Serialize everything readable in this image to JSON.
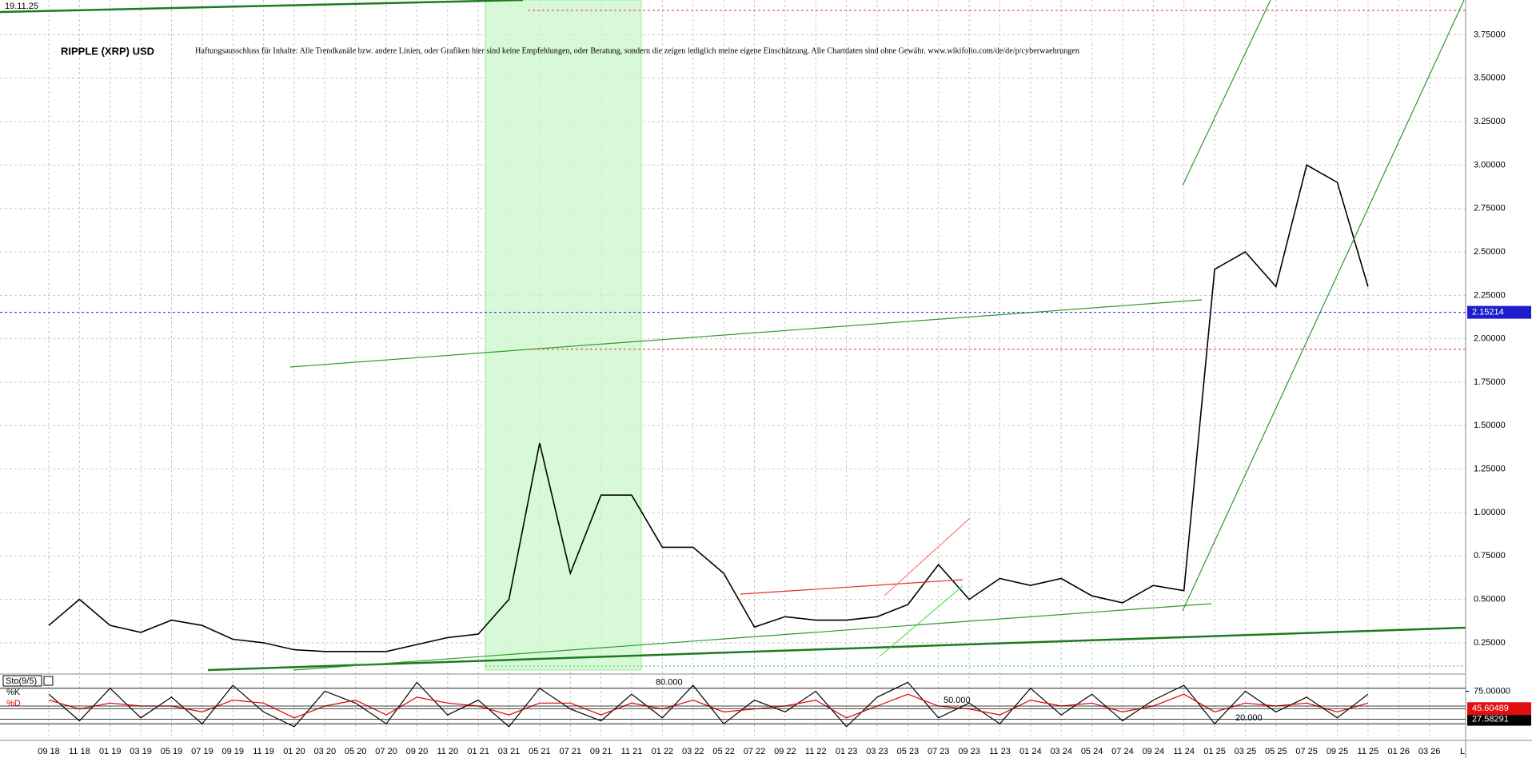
{
  "chart_data": [
    {
      "type": "line",
      "title": "RIPPLE (XRP) USD",
      "date": "19.11.25",
      "disclaimer": "Haftungsausschluss für Inhalte: Alle Trendkanäle bzw. andere Linien, oder Grafiken hier sind keine Empfehlungen, oder Beratung, sondern die zeigen lediglich meine eigene Einschätzung. Alle Chartdaten sind ohne Gewähr.  www.wikifolio.com/de/de/p/cyberwaehrungen",
      "categories": [
        "09 18",
        "11 18",
        "01 19",
        "03 19",
        "05 19",
        "07 19",
        "09 19",
        "11 19",
        "01 20",
        "03 20",
        "05 20",
        "07 20",
        "09 20",
        "11 20",
        "01 21",
        "03 21",
        "05 21",
        "07 21",
        "09 21",
        "11 21",
        "01 22",
        "03 22",
        "05 22",
        "07 22",
        "09 22",
        "11 22",
        "01 23",
        "03 23",
        "05 23",
        "07 23",
        "09 23",
        "11 23",
        "01 24",
        "03 24",
        "05 24",
        "07 24",
        "09 24",
        "11 24",
        "01 25",
        "03 25",
        "05 25",
        "07 25",
        "09 25",
        "11 25",
        "01 26",
        "03 26"
      ],
      "series": [
        {
          "name": "XRP",
          "color": "#000000",
          "values": [
            0.35,
            0.5,
            0.35,
            0.31,
            0.38,
            0.35,
            0.27,
            0.25,
            0.21,
            0.2,
            0.2,
            0.2,
            0.24,
            0.28,
            0.3,
            0.5,
            1.4,
            0.65,
            1.1,
            1.1,
            0.8,
            0.8,
            0.65,
            0.34,
            0.4,
            0.38,
            0.38,
            0.4,
            0.47,
            0.7,
            0.5,
            0.62,
            0.58,
            0.62,
            0.52,
            0.48,
            0.58,
            0.55,
            2.4,
            2.5,
            2.3,
            3.0,
            2.9,
            2.3,
            null,
            null
          ]
        }
      ],
      "current_price": 2.15214,
      "ref_lines": [
        1.94,
        3.89
      ],
      "ylim": [
        0.07,
        3.95
      ],
      "yticks": [
        {
          "value": 0.25,
          "label": "0.25000"
        },
        {
          "value": 0.5,
          "label": "0.50000"
        },
        {
          "value": 0.75,
          "label": "0.75000"
        },
        {
          "value": 1.0,
          "label": "1.00000"
        },
        {
          "value": 1.25,
          "label": "1.25000"
        },
        {
          "value": 1.5,
          "label": "1.50000"
        },
        {
          "value": 1.75,
          "label": "1.75000"
        },
        {
          "value": 2.0,
          "label": "2.00000"
        },
        {
          "value": 2.25,
          "label": "2.25000"
        },
        {
          "value": 2.5,
          "label": "2.50000"
        },
        {
          "value": 2.75,
          "label": "2.75000"
        },
        {
          "value": 3.0,
          "label": "3.00000"
        },
        {
          "value": 3.25,
          "label": "3.25000"
        },
        {
          "value": 3.5,
          "label": "3.50000"
        },
        {
          "value": 3.75,
          "label": "3.75000"
        }
      ],
      "grid": true
    },
    {
      "type": "line",
      "title": "Sto(9/5)",
      "series": [
        {
          "name": "%K",
          "color": "#000000",
          "current_value": 27.58291,
          "values": [
            70,
            25,
            80,
            30,
            65,
            20,
            85,
            40,
            15,
            75,
            55,
            20,
            90,
            35,
            60,
            15,
            80,
            45,
            25,
            70,
            30,
            85,
            20,
            60,
            40,
            75,
            15,
            65,
            90,
            30,
            55,
            20,
            80,
            35,
            70,
            25,
            60,
            85,
            20,
            75,
            40,
            65,
            30,
            70,
            null,
            null
          ]
        },
        {
          "name": "%D",
          "color": "#e00000",
          "current_value": 45.60489,
          "values": [
            60,
            45,
            55,
            50,
            50,
            40,
            60,
            55,
            30,
            50,
            60,
            35,
            65,
            55,
            50,
            35,
            55,
            55,
            35,
            55,
            45,
            60,
            40,
            45,
            50,
            60,
            30,
            50,
            70,
            50,
            45,
            35,
            60,
            50,
            55,
            40,
            50,
            70,
            40,
            55,
            50,
            55,
            40,
            55,
            null,
            null
          ]
        }
      ],
      "levels": [
        {
          "value": 80,
          "label": "80.000"
        },
        {
          "value": 50,
          "label": "50.000"
        },
        {
          "value": 20,
          "label": "20.000"
        }
      ],
      "ylim": [
        0,
        100
      ],
      "yticks": [
        {
          "value": 75,
          "label": "75.00000"
        }
      ]
    }
  ]
}
